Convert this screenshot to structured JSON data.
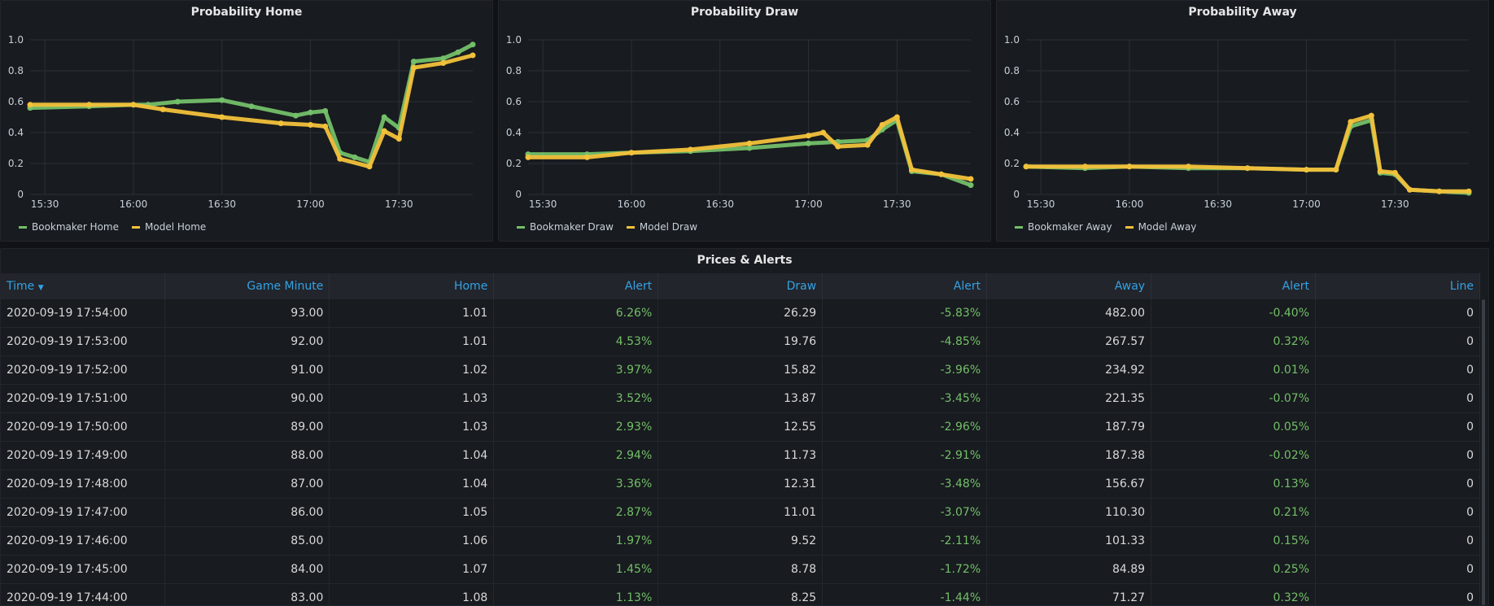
{
  "colors": {
    "bookmaker": "#73bf69",
    "model": "#f2c13b",
    "grid": "#2c3036",
    "text": "#c7d0d9"
  },
  "panels": [
    {
      "title": "Probability Home",
      "legend": [
        "Bookmaker Home",
        "Model Home"
      ]
    },
    {
      "title": "Probability Draw",
      "legend": [
        "Bookmaker Draw",
        "Model Draw"
      ]
    },
    {
      "title": "Probability Away",
      "legend": [
        "Bookmaker Away",
        "Model Away"
      ]
    }
  ],
  "chart_data": [
    {
      "type": "line",
      "title": "Probability Home",
      "x_ticks": [
        "15:30",
        "16:00",
        "16:30",
        "17:00",
        "17:30"
      ],
      "y_ticks": [
        "0",
        "0.2",
        "0.4",
        "0.6",
        "0.8",
        "1.0"
      ],
      "ylim": [
        0,
        1
      ],
      "xlim": [
        "15:25",
        "17:55"
      ],
      "series": [
        {
          "name": "Bookmaker Home",
          "x": [
            "15:25",
            "15:45",
            "16:00",
            "16:05",
            "16:15",
            "16:30",
            "16:40",
            "16:55",
            "17:00",
            "17:05",
            "17:10",
            "17:15",
            "17:20",
            "17:25",
            "17:30",
            "17:35",
            "17:45",
            "17:50",
            "17:55"
          ],
          "y": [
            0.56,
            0.57,
            0.58,
            0.58,
            0.6,
            0.61,
            0.57,
            0.51,
            0.53,
            0.54,
            0.27,
            0.24,
            0.21,
            0.5,
            0.43,
            0.86,
            0.88,
            0.92,
            0.97
          ]
        },
        {
          "name": "Model Home",
          "x": [
            "15:25",
            "15:45",
            "16:00",
            "16:10",
            "16:30",
            "16:50",
            "17:00",
            "17:05",
            "17:10",
            "17:20",
            "17:25",
            "17:30",
            "17:35",
            "17:45",
            "17:55"
          ],
          "y": [
            0.58,
            0.58,
            0.58,
            0.55,
            0.5,
            0.46,
            0.45,
            0.44,
            0.23,
            0.18,
            0.41,
            0.36,
            0.82,
            0.85,
            0.9
          ]
        }
      ]
    },
    {
      "type": "line",
      "title": "Probability Draw",
      "x_ticks": [
        "15:30",
        "16:00",
        "16:30",
        "17:00",
        "17:30"
      ],
      "y_ticks": [
        "0",
        "0.2",
        "0.4",
        "0.6",
        "0.8",
        "1.0"
      ],
      "ylim": [
        0,
        1
      ],
      "xlim": [
        "15:25",
        "17:55"
      ],
      "series": [
        {
          "name": "Bookmaker Draw",
          "x": [
            "15:25",
            "15:45",
            "16:00",
            "16:20",
            "16:40",
            "17:00",
            "17:10",
            "17:20",
            "17:25",
            "17:30",
            "17:35",
            "17:45",
            "17:55"
          ],
          "y": [
            0.26,
            0.26,
            0.27,
            0.28,
            0.3,
            0.33,
            0.34,
            0.35,
            0.42,
            0.48,
            0.15,
            0.13,
            0.06
          ]
        },
        {
          "name": "Model Draw",
          "x": [
            "15:25",
            "15:45",
            "16:00",
            "16:20",
            "16:40",
            "17:00",
            "17:05",
            "17:10",
            "17:20",
            "17:25",
            "17:30",
            "17:35",
            "17:45",
            "17:55"
          ],
          "y": [
            0.24,
            0.24,
            0.27,
            0.29,
            0.33,
            0.38,
            0.4,
            0.31,
            0.32,
            0.45,
            0.5,
            0.16,
            0.13,
            0.1
          ]
        }
      ]
    },
    {
      "type": "line",
      "title": "Probability Away",
      "x_ticks": [
        "15:30",
        "16:00",
        "16:30",
        "17:00",
        "17:30"
      ],
      "y_ticks": [
        "0",
        "0.2",
        "0.4",
        "0.6",
        "0.8",
        "1.0"
      ],
      "ylim": [
        0,
        1
      ],
      "xlim": [
        "15:25",
        "17:55"
      ],
      "series": [
        {
          "name": "Bookmaker Away",
          "x": [
            "15:25",
            "15:45",
            "16:00",
            "16:20",
            "16:40",
            "17:00",
            "17:10",
            "17:15",
            "17:22",
            "17:25",
            "17:30",
            "17:35",
            "17:45",
            "17:55"
          ],
          "y": [
            0.18,
            0.17,
            0.18,
            0.17,
            0.17,
            0.16,
            0.16,
            0.44,
            0.48,
            0.14,
            0.13,
            0.03,
            0.02,
            0.01
          ]
        },
        {
          "name": "Model Away",
          "x": [
            "15:25",
            "15:45",
            "16:00",
            "16:20",
            "16:40",
            "17:00",
            "17:10",
            "17:15",
            "17:22",
            "17:25",
            "17:30",
            "17:35",
            "17:45",
            "17:55"
          ],
          "y": [
            0.18,
            0.18,
            0.18,
            0.18,
            0.17,
            0.16,
            0.16,
            0.47,
            0.51,
            0.15,
            0.14,
            0.03,
            0.02,
            0.02
          ]
        }
      ]
    }
  ],
  "table": {
    "title": "Prices & Alerts",
    "headers": [
      "Time",
      "Game Minute",
      "Home",
      "Alert",
      "Draw",
      "Alert",
      "Away",
      "Alert",
      "Line"
    ],
    "rows": [
      [
        "2020-09-19 17:54:00",
        "93.00",
        "1.01",
        "6.26%",
        "26.29",
        "-5.83%",
        "482.00",
        "-0.40%",
        "0"
      ],
      [
        "2020-09-19 17:53:00",
        "92.00",
        "1.01",
        "4.53%",
        "19.76",
        "-4.85%",
        "267.57",
        "0.32%",
        "0"
      ],
      [
        "2020-09-19 17:52:00",
        "91.00",
        "1.02",
        "3.97%",
        "15.82",
        "-3.96%",
        "234.92",
        "0.01%",
        "0"
      ],
      [
        "2020-09-19 17:51:00",
        "90.00",
        "1.03",
        "3.52%",
        "13.87",
        "-3.45%",
        "221.35",
        "-0.07%",
        "0"
      ],
      [
        "2020-09-19 17:50:00",
        "89.00",
        "1.03",
        "2.93%",
        "12.55",
        "-2.96%",
        "187.79",
        "0.05%",
        "0"
      ],
      [
        "2020-09-19 17:49:00",
        "88.00",
        "1.04",
        "2.94%",
        "11.73",
        "-2.91%",
        "187.38",
        "-0.02%",
        "0"
      ],
      [
        "2020-09-19 17:48:00",
        "87.00",
        "1.04",
        "3.36%",
        "12.31",
        "-3.48%",
        "156.67",
        "0.13%",
        "0"
      ],
      [
        "2020-09-19 17:47:00",
        "86.00",
        "1.05",
        "2.87%",
        "11.01",
        "-3.07%",
        "110.30",
        "0.21%",
        "0"
      ],
      [
        "2020-09-19 17:46:00",
        "85.00",
        "1.06",
        "1.97%",
        "9.52",
        "-2.11%",
        "101.33",
        "0.15%",
        "0"
      ],
      [
        "2020-09-19 17:45:00",
        "84.00",
        "1.07",
        "1.45%",
        "8.78",
        "-1.72%",
        "84.89",
        "0.25%",
        "0"
      ],
      [
        "2020-09-19 17:44:00",
        "83.00",
        "1.08",
        "1.13%",
        "8.25",
        "-1.44%",
        "71.27",
        "0.32%",
        "0"
      ]
    ]
  }
}
